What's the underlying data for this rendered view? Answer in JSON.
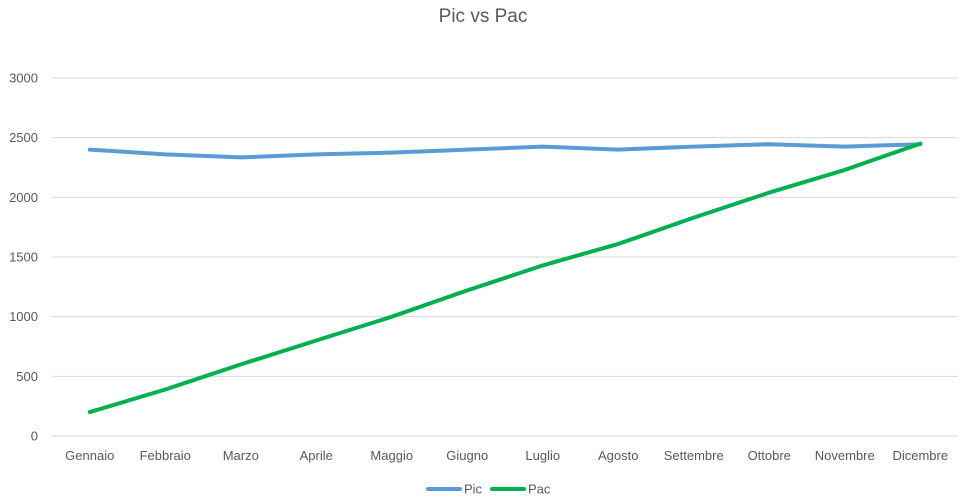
{
  "chart_data": {
    "type": "line",
    "title": "Pic vs Pac",
    "xlabel": "",
    "ylabel": "",
    "categories": [
      "Gennaio",
      "Febbraio",
      "Marzo",
      "Aprile",
      "Maggio",
      "Giugno",
      "Luglio",
      "Agosto",
      "Settembre",
      "Ottobre",
      "Novembre",
      "Dicembre"
    ],
    "ylim": [
      0,
      3000
    ],
    "yticks": [
      "0",
      "500",
      "1000",
      "1500",
      "2000",
      "2500",
      "3000"
    ],
    "grid": true,
    "legend_position": "bottom",
    "series": [
      {
        "name": "Pic",
        "color": "#5b9bd5",
        "values": [
          2400,
          2360,
          2335,
          2360,
          2375,
          2400,
          2425,
          2400,
          2425,
          2445,
          2425,
          2445
        ]
      },
      {
        "name": "Pac",
        "color": "#00b050",
        "values": [
          200,
          390,
          600,
          800,
          1000,
          1220,
          1430,
          1610,
          1830,
          2040,
          2230,
          2450
        ]
      }
    ]
  }
}
